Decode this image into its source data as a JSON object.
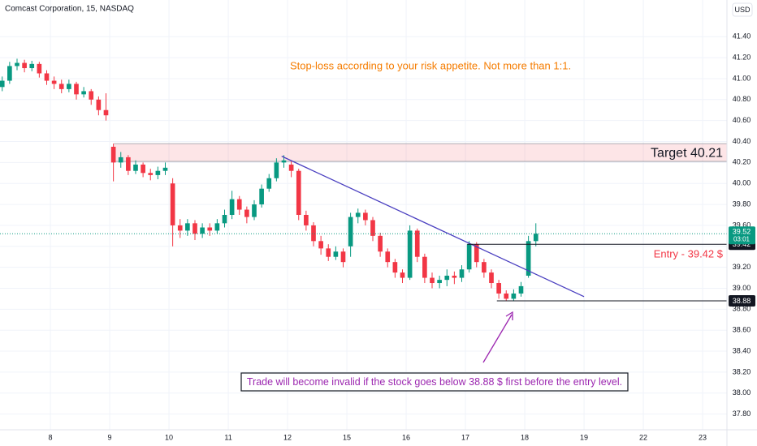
{
  "chart_data": {
    "type": "candlestick",
    "title": "Comcast Corporation, 15, NASDAQ",
    "currency": "USD",
    "up_color": "#089981",
    "down_color": "#f23645",
    "grid": true,
    "x": [
      -0.8125,
      -0.6875,
      -0.5625,
      -0.4375,
      -0.3125,
      -0.1875,
      -0.0625,
      0.0625,
      0.1875,
      0.3125,
      0.4375,
      0.5625,
      0.6875,
      0.8125,
      0.9375,
      1.0625,
      1.1875,
      1.3125,
      1.4375,
      1.5625,
      1.6875,
      1.8125,
      1.9375,
      2.0625,
      2.1875,
      2.3125,
      2.4375,
      2.5625,
      2.6875,
      2.8125,
      2.9375,
      3.0625,
      3.1875,
      3.3125,
      3.4375,
      3.5625,
      3.6875,
      3.8125,
      3.9375,
      4.0625,
      4.1875,
      4.3125,
      4.4375,
      4.5625,
      4.6875,
      4.8125,
      4.9375,
      5.0625,
      5.1875,
      5.3125,
      5.4375,
      5.5625,
      5.6875,
      5.8125,
      5.9375,
      6.0625,
      6.1875,
      6.3125,
      6.4375,
      6.5625,
      6.6875,
      6.8125,
      6.9375,
      7.0625,
      7.1875,
      7.3125,
      7.4375,
      7.5625,
      7.6875,
      7.8125,
      7.9375,
      8.0625,
      8.1875
    ],
    "open": [
      40.92,
      40.98,
      41.12,
      41.15,
      41.1,
      41.14,
      41.05,
      40.98,
      40.95,
      40.9,
      40.95,
      40.85,
      40.88,
      40.8,
      40.7,
      40.35,
      40.2,
      40.25,
      40.12,
      40.18,
      40.1,
      40.08,
      40.12,
      40.0,
      39.6,
      39.55,
      39.62,
      39.52,
      39.58,
      39.55,
      39.62,
      39.7,
      39.85,
      39.75,
      39.68,
      39.8,
      39.95,
      40.05,
      40.2,
      40.18,
      40.12,
      39.7,
      39.6,
      39.45,
      39.38,
      39.3,
      39.35,
      39.4,
      39.68,
      39.72,
      39.65,
      39.5,
      39.35,
      39.25,
      39.15,
      39.1,
      39.55,
      39.3,
      39.1,
      39.05,
      39.08,
      39.12,
      39.1,
      39.18,
      39.42,
      39.25,
      39.15,
      39.05,
      38.95,
      38.9,
      38.95,
      39.12,
      39.45
    ],
    "high": [
      41.02,
      41.16,
      41.19,
      41.18,
      41.17,
      41.16,
      41.08,
      41.02,
      40.99,
      40.99,
      40.97,
      40.92,
      40.9,
      40.83,
      40.86,
      40.38,
      40.3,
      40.27,
      40.22,
      40.2,
      40.14,
      40.16,
      40.2,
      40.05,
      39.66,
      39.66,
      39.65,
      39.62,
      39.62,
      39.66,
      39.75,
      39.93,
      39.88,
      39.78,
      39.84,
      39.99,
      40.09,
      40.24,
      40.27,
      40.22,
      40.14,
      39.74,
      39.63,
      39.5,
      39.42,
      39.4,
      39.38,
      39.72,
      39.76,
      39.75,
      39.68,
      39.53,
      39.38,
      39.28,
      39.18,
      39.6,
      39.57,
      39.33,
      39.15,
      39.12,
      39.18,
      39.16,
      39.22,
      39.45,
      39.44,
      39.28,
      39.18,
      39.08,
      38.98,
      38.99,
      39.06,
      39.5,
      39.62
    ],
    "low": [
      40.88,
      40.95,
      41.08,
      41.06,
      41.07,
      41.01,
      40.94,
      40.9,
      40.86,
      40.87,
      40.8,
      40.82,
      40.75,
      40.65,
      40.6,
      40.02,
      40.15,
      40.08,
      40.09,
      40.06,
      40.03,
      40.04,
      40.08,
      39.4,
      39.48,
      39.5,
      39.46,
      39.48,
      39.5,
      39.52,
      39.58,
      39.66,
      39.7,
      39.62,
      39.65,
      39.77,
      39.92,
      40.02,
      40.15,
      40.06,
      39.65,
      39.55,
      39.4,
      39.32,
      39.26,
      39.27,
      39.2,
      39.3,
      39.62,
      39.6,
      39.45,
      39.3,
      39.2,
      39.1,
      39.05,
      39.08,
      39.25,
      39.05,
      39.0,
      39.0,
      39.02,
      39.04,
      39.06,
      39.15,
      39.2,
      39.1,
      39.0,
      38.9,
      38.88,
      38.88,
      38.92,
      39.1,
      39.4
    ],
    "close": [
      40.98,
      41.12,
      41.15,
      41.1,
      41.14,
      41.05,
      40.98,
      40.95,
      40.9,
      40.95,
      40.85,
      40.88,
      40.8,
      40.7,
      40.65,
      40.2,
      40.25,
      40.12,
      40.18,
      40.1,
      40.08,
      40.12,
      40.15,
      39.6,
      39.55,
      39.62,
      39.52,
      39.58,
      39.55,
      39.62,
      39.7,
      39.85,
      39.75,
      39.68,
      39.8,
      39.95,
      40.05,
      40.2,
      40.22,
      40.12,
      39.7,
      39.6,
      39.45,
      39.38,
      39.3,
      39.35,
      39.25,
      39.68,
      39.72,
      39.65,
      39.5,
      39.35,
      39.25,
      39.15,
      39.1,
      39.55,
      39.3,
      39.1,
      39.05,
      39.08,
      39.12,
      39.1,
      39.18,
      39.42,
      39.25,
      39.15,
      39.05,
      38.95,
      38.9,
      38.95,
      39.02,
      39.45,
      39.52
    ],
    "xlim": [
      -0.85,
      11.41
    ],
    "xticks": [
      {
        "value": 0,
        "label": "8"
      },
      {
        "value": 1,
        "label": "9"
      },
      {
        "value": 2,
        "label": "10"
      },
      {
        "value": 3,
        "label": "11"
      },
      {
        "value": 4,
        "label": "12"
      },
      {
        "value": 5,
        "label": "15"
      },
      {
        "value": 6,
        "label": "16"
      },
      {
        "value": 7,
        "label": "17"
      },
      {
        "value": 8,
        "label": "18"
      },
      {
        "value": 9,
        "label": "19"
      },
      {
        "value": 10,
        "label": "22"
      },
      {
        "value": 11,
        "label": "23"
      }
    ],
    "ylim": [
      37.65,
      41.75
    ],
    "yticks": [
      {
        "value": 37.8,
        "label": "37.80"
      },
      {
        "value": 38.0,
        "label": "38.00"
      },
      {
        "value": 38.2,
        "label": "38.20"
      },
      {
        "value": 38.4,
        "label": "38.40"
      },
      {
        "value": 38.6,
        "label": "38.60"
      },
      {
        "value": 38.8,
        "label": "38.80"
      },
      {
        "value": 39.0,
        "label": "39.00"
      },
      {
        "value": 39.2,
        "label": "39.20"
      },
      {
        "value": 39.4,
        "label": "39.40"
      },
      {
        "value": 39.6,
        "label": "39.60"
      },
      {
        "value": 39.8,
        "label": "39.80"
      },
      {
        "value": 40.0,
        "label": "40.00"
      },
      {
        "value": 40.2,
        "label": "40.20"
      },
      {
        "value": 40.4,
        "label": "40.40"
      },
      {
        "value": 40.6,
        "label": "40.60"
      },
      {
        "value": 40.8,
        "label": "40.80"
      },
      {
        "value": 41.0,
        "label": "41.00"
      },
      {
        "value": 41.2,
        "label": "41.20"
      },
      {
        "value": 41.4,
        "label": "41.40"
      }
    ],
    "last_price": {
      "value": 39.52,
      "countdown": "03:01",
      "color": "#089981"
    },
    "target": {
      "low": 40.21,
      "high": 40.38,
      "from_x": 1.07,
      "text": "Target 40.21",
      "color": "#f23645"
    },
    "entry": {
      "value": 39.42,
      "from_x": 7.03,
      "text": "Entry - 39.42 $",
      "color": "#f23645"
    },
    "invalidation": {
      "value": 38.88,
      "from_x": 7.53,
      "text": "Trade will become invalid if the stock goes below 38.88 $ first before the entry level.",
      "color": "#9c27b0"
    },
    "trendline": {
      "x": [
        3.9,
        9.0
      ],
      "y": [
        40.26,
        38.92
      ],
      "color": "#4a3fc0"
    },
    "note": {
      "text": "Stop-loss according to your risk appetite. Not more than 1:1.",
      "color": "#f57c00"
    }
  }
}
